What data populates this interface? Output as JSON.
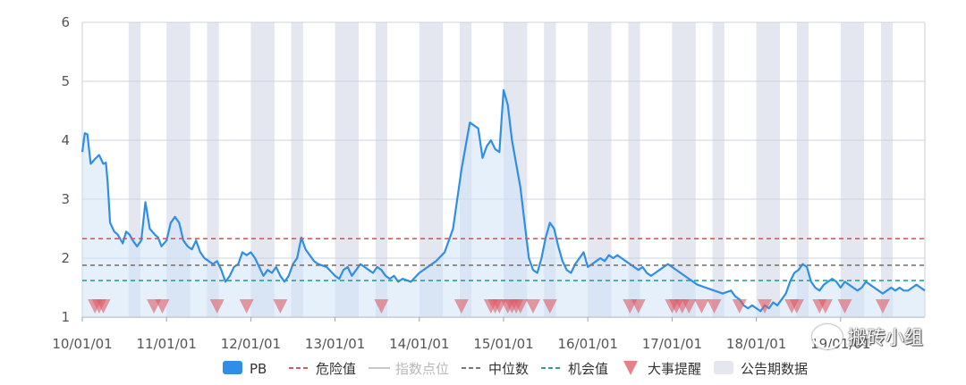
{
  "chart_data": {
    "type": "line",
    "ylim": [
      1,
      6
    ],
    "yticks": [
      "1",
      "2",
      "3",
      "4",
      "5",
      "6"
    ],
    "xticks": [
      "10/01/01",
      "11/01/01",
      "12/01/01",
      "13/01/01",
      "14/01/01",
      "15/01/01",
      "16/01/01",
      "17/01/01",
      "18/01/01",
      "19/01/01"
    ],
    "series": [
      {
        "name": "PB",
        "color": "#2f8fe8",
        "x": [
          2010.0,
          2010.03,
          2010.06,
          2010.1,
          2010.15,
          2010.2,
          2010.25,
          2010.28,
          2010.3,
          2010.33,
          2010.38,
          2010.42,
          2010.48,
          2010.52,
          2010.56,
          2010.6,
          2010.65,
          2010.7,
          2010.75,
          2010.8,
          2010.86,
          2010.9,
          2010.94,
          2011.0,
          2011.05,
          2011.1,
          2011.15,
          2011.2,
          2011.25,
          2011.3,
          2011.35,
          2011.4,
          2011.45,
          2011.5,
          2011.55,
          2011.6,
          2011.65,
          2011.7,
          2011.75,
          2011.8,
          2011.85,
          2011.9,
          2011.95,
          2012.0,
          2012.05,
          2012.1,
          2012.15,
          2012.2,
          2012.25,
          2012.3,
          2012.35,
          2012.4,
          2012.45,
          2012.5,
          2012.55,
          2012.6,
          2012.65,
          2012.7,
          2012.75,
          2012.8,
          2012.9,
          2013.0,
          2013.05,
          2013.1,
          2013.15,
          2013.2,
          2013.25,
          2013.3,
          2013.35,
          2013.4,
          2013.45,
          2013.5,
          2013.55,
          2013.6,
          2013.65,
          2013.7,
          2013.75,
          2013.8,
          2013.9,
          2014.0,
          2014.1,
          2014.2,
          2014.3,
          2014.4,
          2014.5,
          2014.6,
          2014.7,
          2014.75,
          2014.8,
          2014.85,
          2014.9,
          2014.95,
          2015.0,
          2015.05,
          2015.1,
          2015.15,
          2015.2,
          2015.25,
          2015.3,
          2015.35,
          2015.4,
          2015.45,
          2015.5,
          2015.55,
          2015.6,
          2015.65,
          2015.7,
          2015.75,
          2015.8,
          2015.85,
          2015.9,
          2015.95,
          2016.0,
          2016.05,
          2016.1,
          2016.15,
          2016.2,
          2016.25,
          2016.3,
          2016.35,
          2016.4,
          2016.45,
          2016.5,
          2016.55,
          2016.6,
          2016.65,
          2016.7,
          2016.75,
          2016.8,
          2016.85,
          2016.9,
          2016.95,
          2017.0,
          2017.1,
          2017.2,
          2017.3,
          2017.4,
          2017.5,
          2017.6,
          2017.7,
          2017.75,
          2017.8,
          2017.85,
          2017.9,
          2017.95,
          2018.0,
          2018.05,
          2018.1,
          2018.15,
          2018.2,
          2018.25,
          2018.3,
          2018.35,
          2018.4,
          2018.45,
          2018.5,
          2018.55,
          2018.6,
          2018.65,
          2018.7,
          2018.75,
          2018.8,
          2018.85,
          2018.9,
          2018.95,
          2019.0,
          2019.05,
          2019.1,
          2019.15,
          2019.2,
          2019.25,
          2019.3,
          2019.35,
          2019.4,
          2019.45,
          2019.5,
          2019.55,
          2019.6,
          2019.65,
          2019.7,
          2019.75,
          2019.8,
          2019.85,
          2019.9,
          2019.95,
          2020.0
        ],
        "y": [
          3.8,
          4.12,
          4.1,
          3.6,
          3.68,
          3.75,
          3.6,
          3.62,
          3.3,
          2.6,
          2.45,
          2.4,
          2.25,
          2.45,
          2.4,
          2.3,
          2.2,
          2.3,
          2.95,
          2.5,
          2.4,
          2.35,
          2.2,
          2.3,
          2.6,
          2.7,
          2.6,
          2.3,
          2.2,
          2.15,
          2.3,
          2.1,
          2.0,
          1.95,
          1.9,
          1.95,
          1.8,
          1.6,
          1.7,
          1.85,
          1.9,
          2.1,
          2.05,
          2.1,
          2.0,
          1.85,
          1.7,
          1.8,
          1.75,
          1.85,
          1.7,
          1.6,
          1.7,
          1.9,
          2.0,
          2.35,
          2.15,
          2.05,
          1.95,
          1.9,
          1.85,
          1.7,
          1.65,
          1.8,
          1.85,
          1.7,
          1.8,
          1.9,
          1.85,
          1.8,
          1.75,
          1.85,
          1.8,
          1.7,
          1.65,
          1.7,
          1.6,
          1.65,
          1.6,
          1.75,
          1.85,
          1.95,
          2.1,
          2.5,
          3.5,
          4.3,
          4.2,
          3.7,
          3.9,
          4.0,
          3.85,
          3.8,
          4.85,
          4.6,
          4.0,
          3.6,
          3.2,
          2.6,
          2.0,
          1.8,
          1.75,
          2.0,
          2.35,
          2.6,
          2.5,
          2.2,
          1.95,
          1.8,
          1.75,
          1.9,
          2.0,
          2.1,
          1.85,
          1.9,
          1.95,
          2.0,
          1.95,
          2.05,
          2.0,
          2.05,
          2.0,
          1.95,
          1.9,
          1.85,
          1.8,
          1.85,
          1.75,
          1.7,
          1.75,
          1.8,
          1.85,
          1.9,
          1.85,
          1.75,
          1.65,
          1.55,
          1.5,
          1.45,
          1.4,
          1.45,
          1.35,
          1.3,
          1.2,
          1.15,
          1.2,
          1.15,
          1.1,
          1.2,
          1.15,
          1.25,
          1.2,
          1.3,
          1.4,
          1.6,
          1.75,
          1.8,
          1.9,
          1.85,
          1.6,
          1.5,
          1.45,
          1.55,
          1.6,
          1.65,
          1.6,
          1.5,
          1.6,
          1.55,
          1.5,
          1.45,
          1.5,
          1.6,
          1.55,
          1.5,
          1.45,
          1.4,
          1.45,
          1.5,
          1.45,
          1.5,
          1.45,
          1.45,
          1.5,
          1.55,
          1.5,
          1.45
        ]
      }
    ],
    "reference_lines": [
      {
        "name": "危险值",
        "value": 2.33,
        "color": "#e8505b",
        "style": "dashed"
      },
      {
        "name": "指数点位",
        "color": "#c8c8c8",
        "style": "solid",
        "visible": false
      },
      {
        "name": "中位数",
        "value": 1.88,
        "color": "#777777",
        "style": "dashed"
      },
      {
        "name": "机会值",
        "value": 1.62,
        "color": "#2aa198",
        "style": "dashed"
      }
    ],
    "event_markers": {
      "name": "大事提醒",
      "color": "#e05a64",
      "x": [
        2010.15,
        2010.2,
        2010.25,
        2010.85,
        2010.95,
        2011.6,
        2011.95,
        2012.35,
        2013.55,
        2014.5,
        2014.85,
        2014.9,
        2014.95,
        2015.05,
        2015.1,
        2015.15,
        2015.2,
        2015.35,
        2015.55,
        2016.5,
        2016.6,
        2017.0,
        2017.05,
        2017.12,
        2017.2,
        2017.35,
        2017.5,
        2017.8,
        2018.1,
        2018.42,
        2018.48,
        2018.75,
        2018.82,
        2019.05,
        2019.5
      ]
    },
    "announcement_periods": {
      "name": "公告期数据",
      "color": "#e4e6f0",
      "ranges": [
        [
          2010.55,
          2010.69
        ],
        [
          2011.0,
          2011.28
        ],
        [
          2011.48,
          2011.62
        ],
        [
          2012.0,
          2012.28
        ],
        [
          2012.48,
          2012.62
        ],
        [
          2013.0,
          2013.28
        ],
        [
          2013.48,
          2013.62
        ],
        [
          2014.0,
          2014.28
        ],
        [
          2014.48,
          2014.62
        ],
        [
          2015.0,
          2015.28
        ],
        [
          2015.48,
          2015.62
        ],
        [
          2016.0,
          2016.28
        ],
        [
          2016.48,
          2016.62
        ],
        [
          2017.0,
          2017.28
        ],
        [
          2017.48,
          2017.62
        ],
        [
          2018.0,
          2018.28
        ],
        [
          2018.48,
          2018.62
        ],
        [
          2019.0,
          2019.28
        ],
        [
          2019.48,
          2019.62
        ]
      ]
    },
    "xlim": [
      2010.0,
      2020.0
    ],
    "grid": true,
    "legend": {
      "position": "bottom",
      "items": [
        {
          "label": "PB",
          "kind": "rect",
          "color": "#2f8fe8"
        },
        {
          "label": "危险值",
          "kind": "dash",
          "color": "#e8505b"
        },
        {
          "label": "指数点位",
          "kind": "line",
          "color": "#c8c8c8",
          "muted": true
        },
        {
          "label": "中位数",
          "kind": "dash",
          "color": "#777777"
        },
        {
          "label": "机会值",
          "kind": "dash",
          "color": "#2aa198"
        },
        {
          "label": "大事提醒",
          "kind": "triangle",
          "color": "#e88088"
        },
        {
          "label": "公告期数据",
          "kind": "rect",
          "color": "#e4e6f0"
        }
      ]
    }
  },
  "watermark": {
    "text": "搬砖小组",
    "icon": "wechat-logo-icon"
  }
}
